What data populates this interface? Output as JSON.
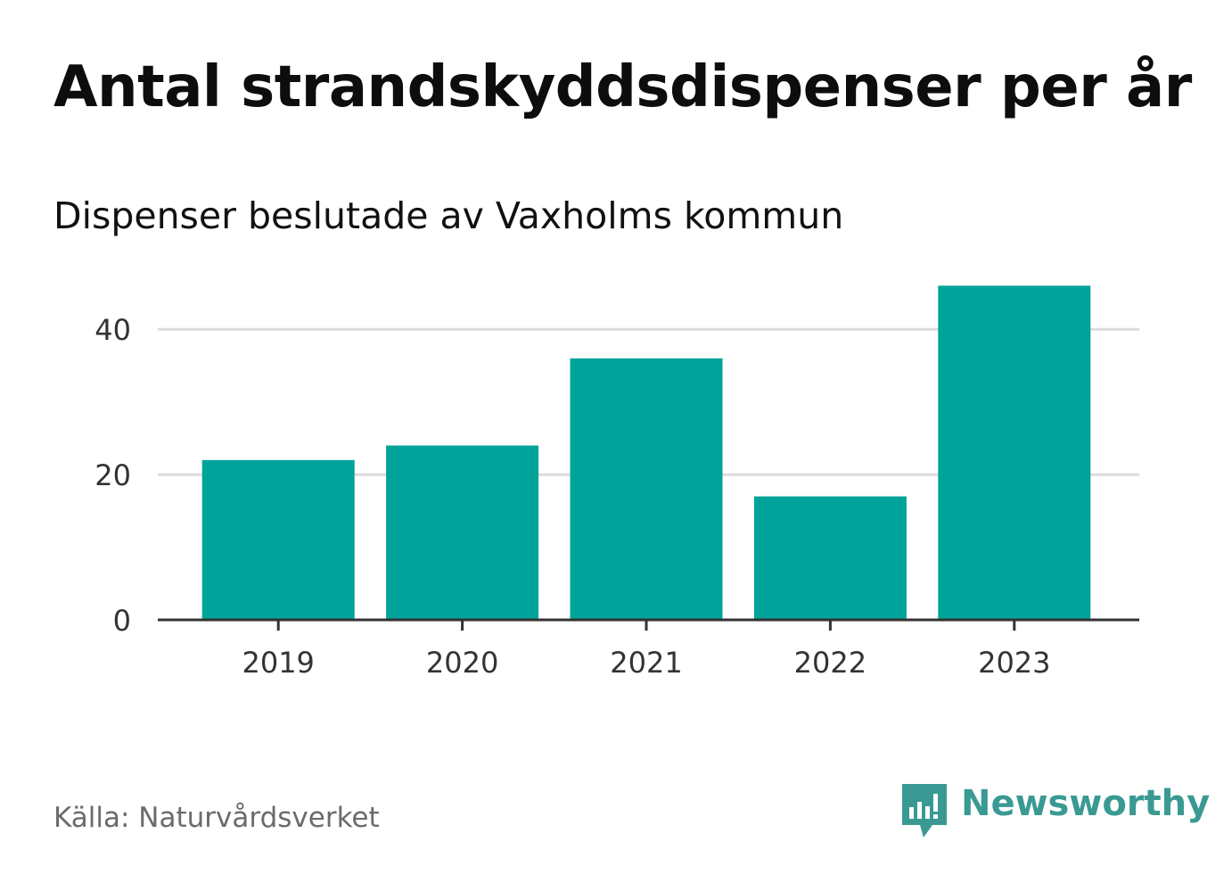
{
  "header": {
    "title": "Antal strandskyddsdispenser per år",
    "subtitle": "Dispenser beslutade av Vaxholms kommun"
  },
  "footer": {
    "source": "Källa: Naturvårdsverket",
    "brand": "Newsworthy",
    "brand_icon": "newsworthy-logo-icon"
  },
  "colors": {
    "bar": "#00a39a",
    "gridline": "#dcdcdc",
    "axis": "#333333",
    "tick_label": "#333333",
    "brand": "#3a9a93"
  },
  "chart_data": {
    "type": "bar",
    "title": "Antal strandskyddsdispenser per år",
    "subtitle": "Dispenser beslutade av Vaxholms kommun",
    "categories": [
      "2019",
      "2020",
      "2021",
      "2022",
      "2023"
    ],
    "values": [
      22,
      24,
      36,
      17,
      46
    ],
    "xlabel": "",
    "ylabel": "",
    "ylim": [
      0,
      48.5
    ],
    "yticks": [
      0,
      20,
      40
    ],
    "grid": true,
    "legend": "none"
  }
}
